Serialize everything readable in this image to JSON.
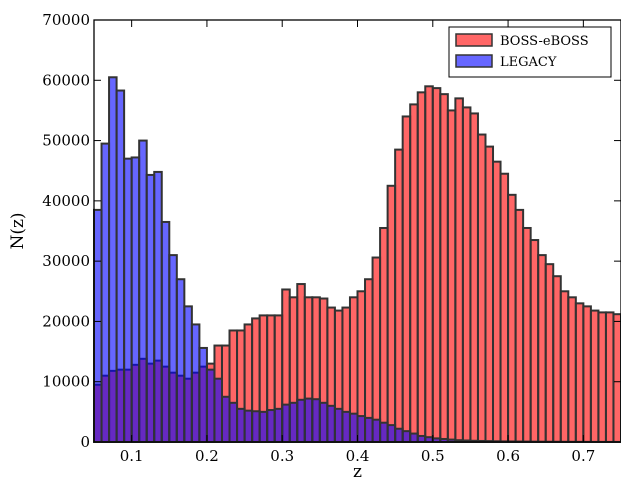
{
  "chart_data": {
    "type": "bar",
    "title": "",
    "xlabel": "z",
    "ylabel": "N(z)",
    "xlim": [
      0.05,
      0.75
    ],
    "ylim": [
      0,
      70000
    ],
    "bin_width": 0.01,
    "bin_starts": [
      0.05,
      0.06,
      0.07,
      0.08,
      0.09,
      0.1,
      0.11,
      0.12,
      0.13,
      0.14,
      0.15,
      0.16,
      0.17,
      0.18,
      0.19,
      0.2,
      0.21,
      0.22,
      0.23,
      0.24,
      0.25,
      0.26,
      0.27,
      0.28,
      0.29,
      0.3,
      0.31,
      0.32,
      0.33,
      0.34,
      0.35,
      0.36,
      0.37,
      0.38,
      0.39,
      0.4,
      0.41,
      0.42,
      0.43,
      0.44,
      0.45,
      0.46,
      0.47,
      0.48,
      0.49,
      0.5,
      0.51,
      0.52,
      0.53,
      0.54,
      0.55,
      0.56,
      0.57,
      0.58,
      0.59,
      0.6,
      0.61,
      0.62,
      0.63,
      0.64,
      0.65,
      0.66,
      0.67,
      0.68,
      0.69,
      0.7,
      0.71,
      0.72,
      0.73,
      0.74
    ],
    "x_ticks": [
      "0.1",
      "0.2",
      "0.3",
      "0.4",
      "0.5",
      "0.6",
      "0.7"
    ],
    "x_tick_values": [
      0.1,
      0.2,
      0.3,
      0.4,
      0.5,
      0.6,
      0.7
    ],
    "y_ticks": [
      "0",
      "10000",
      "20000",
      "30000",
      "40000",
      "50000",
      "60000",
      "70000"
    ],
    "y_tick_values": [
      0,
      10000,
      20000,
      30000,
      40000,
      50000,
      60000,
      70000
    ],
    "legend_position": "top-right",
    "grid": false,
    "series": [
      {
        "name": "BOSS-eBOSS",
        "color": "#ff0000",
        "values": [
          9500,
          11000,
          11800,
          12000,
          12000,
          12800,
          13800,
          13000,
          13500,
          12500,
          11500,
          11000,
          10500,
          11500,
          12500,
          13000,
          16000,
          16000,
          18500,
          18500,
          19500,
          20500,
          21000,
          21000,
          21000,
          25300,
          24000,
          26200,
          24000,
          24000,
          23800,
          22300,
          21800,
          22300,
          24000,
          25000,
          27000,
          30600,
          35500,
          42500,
          48500,
          54000,
          56000,
          58000,
          59000,
          58700,
          57700,
          55000,
          57000,
          55500,
          54500,
          51000,
          49000,
          46500,
          44500,
          41000,
          38500,
          35500,
          33500,
          31000,
          29500,
          27500,
          25000,
          24000,
          23000,
          22500,
          21800,
          21500,
          21500,
          21200
        ]
      },
      {
        "name": "LEGACY",
        "color": "#0000ff",
        "values": [
          38500,
          49500,
          60500,
          58300,
          47000,
          47200,
          50000,
          44300,
          44800,
          36500,
          31000,
          27000,
          22500,
          19500,
          15600,
          12000,
          10500,
          7500,
          6500,
          5500,
          5200,
          5100,
          5000,
          5300,
          5500,
          6200,
          6500,
          7000,
          7200,
          7100,
          6500,
          6000,
          5500,
          5000,
          4700,
          4300,
          4000,
          3700,
          3200,
          2800,
          2200,
          1800,
          1400,
          1000,
          800,
          600,
          500,
          400,
          300,
          250,
          200,
          170,
          150,
          120,
          100,
          90,
          80,
          70,
          60,
          50,
          45,
          40,
          35,
          30,
          25,
          20,
          18,
          16,
          14,
          12
        ]
      }
    ]
  }
}
